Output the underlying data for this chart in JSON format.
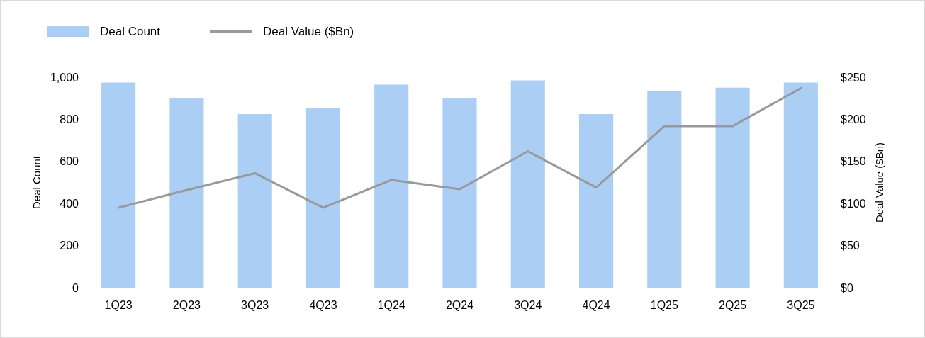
{
  "chart_data": {
    "type": "bar",
    "ylabel": "Deal Count",
    "y2label": "Deal Value ($Bn)",
    "categories": [
      "1Q23",
      "2Q23",
      "3Q23",
      "4Q23",
      "1Q24",
      "2Q24",
      "3Q24",
      "4Q24",
      "1Q25",
      "2Q25",
      "3Q25"
    ],
    "series": [
      {
        "name": "Deal Count",
        "color": "#abcff4",
        "values": [
          975,
          900,
          825,
          855,
          965,
          900,
          985,
          825,
          935,
          950,
          975
        ]
      },
      {
        "name": "Deal Value ($Bn)",
        "type": "line",
        "axis": "y2",
        "color": "#999999",
        "values": [
          95,
          116,
          136,
          95,
          128,
          117,
          162,
          119,
          192,
          192,
          237
        ]
      }
    ],
    "ylim": [
      0,
      1000
    ],
    "yticks": [
      0,
      200,
      400,
      600,
      800,
      {
        "value": 1000,
        "label": "1,000"
      }
    ],
    "y2lim": [
      0,
      250
    ],
    "y2ticks": [
      {
        "value": 0,
        "label": "$0"
      },
      {
        "value": 50,
        "label": "$50"
      },
      {
        "value": 100,
        "label": "$100"
      },
      {
        "value": 150,
        "label": "$150"
      },
      {
        "value": 200,
        "label": "$200"
      },
      {
        "value": 250,
        "label": "$250"
      }
    ],
    "grid": false,
    "legend": "top left",
    "marker": "none",
    "line_style": "solid"
  }
}
